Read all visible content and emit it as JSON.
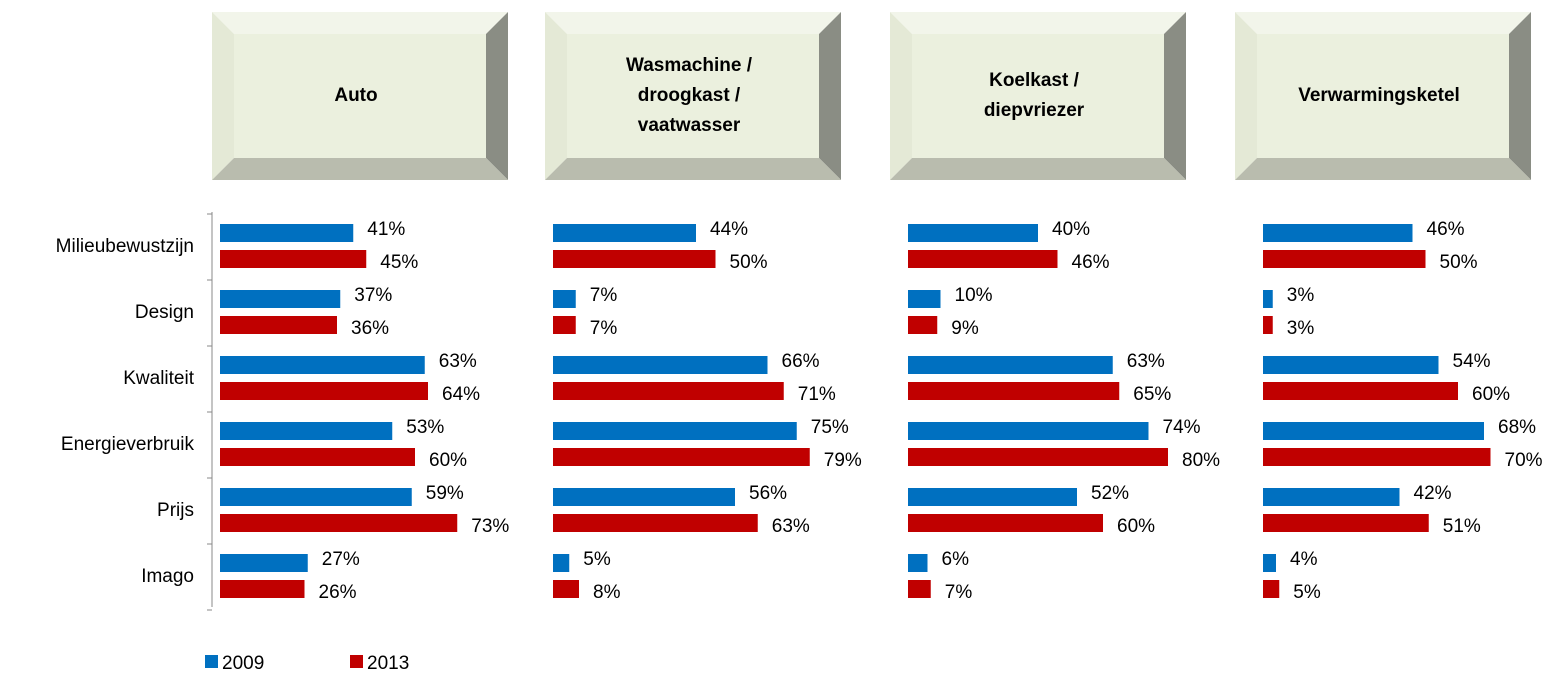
{
  "chart_data": [
    {
      "type": "bar",
      "title": [
        "Auto"
      ],
      "categories": [
        "Milieubewustzijn",
        "Design",
        "Kwaliteit",
        "Energieverbruik",
        "Prijs",
        "Imago"
      ],
      "series": [
        {
          "name": "2009",
          "color": "#0070c0",
          "values": [
            41,
            37,
            63,
            53,
            59,
            27
          ],
          "value_labels": [
            "41%",
            "37%",
            "63%",
            "53%",
            "59%",
            "27%"
          ]
        },
        {
          "name": "2013",
          "color": "#c00000",
          "values": [
            45,
            36,
            64,
            60,
            73,
            26
          ],
          "value_labels": [
            "45%",
            "36%",
            "64%",
            "60%",
            "73%",
            "26%"
          ]
        }
      ]
    },
    {
      "type": "bar",
      "title": [
        "Wasmachine /",
        "droogkast /",
        "vaatwasser"
      ],
      "series": [
        {
          "color": "#0070c0",
          "values": [
            44,
            7,
            66,
            75,
            56,
            5
          ],
          "value_labels": [
            "44%",
            "7%",
            "66%",
            "75%",
            "56%",
            "5%"
          ]
        },
        {
          "color": "#c00000",
          "values": [
            50,
            7,
            71,
            79,
            63,
            8
          ],
          "value_labels": [
            "50%",
            "7%",
            "71%",
            "79%",
            "63%",
            "8%"
          ]
        }
      ]
    },
    {
      "type": "bar",
      "title": [
        "Koelkast /",
        "diepvriezer"
      ],
      "series": [
        {
          "color": "#0070c0",
          "values": [
            40,
            10,
            63,
            74,
            52,
            6
          ],
          "value_labels": [
            "40%",
            "10%",
            "63%",
            "74%",
            "52%",
            "6%"
          ]
        },
        {
          "color": "#c00000",
          "values": [
            46,
            9,
            65,
            80,
            60,
            7
          ],
          "value_labels": [
            "46%",
            "9%",
            "65%",
            "80%",
            "60%",
            "7%"
          ]
        }
      ]
    },
    {
      "type": "bar",
      "title": [
        "Verwarmingsketel"
      ],
      "series": [
        {
          "color": "#0070c0",
          "values": [
            46,
            3,
            54,
            68,
            42,
            4
          ],
          "value_labels": [
            "46%",
            "3%",
            "54%",
            "68%",
            "42%",
            "4%"
          ]
        },
        {
          "color": "#c00000",
          "values": [
            50,
            3,
            60,
            70,
            51,
            5
          ],
          "value_labels": [
            "50%",
            "3%",
            "60%",
            "70%",
            "51%",
            "5%"
          ]
        }
      ]
    }
  ]
}
